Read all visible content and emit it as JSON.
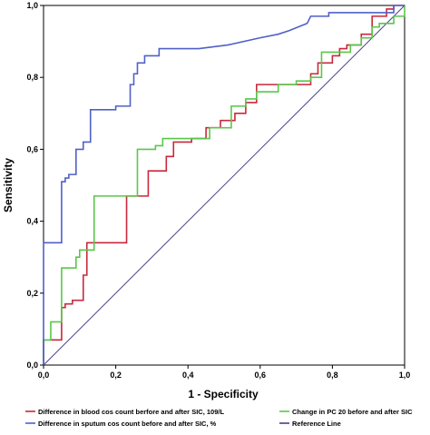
{
  "chart_data": {
    "type": "line",
    "title": "",
    "xlabel": "1 - Specificity",
    "ylabel": "Sensitivity",
    "xlim": [
      0,
      1
    ],
    "ylim": [
      0,
      1
    ],
    "x_ticks": [
      "0,0",
      "0,2",
      "0,4",
      "0,6",
      "0,8",
      "1,0"
    ],
    "y_ticks": [
      "0,0",
      "0,2",
      "0,4",
      "0,6",
      "0,8",
      "1,0"
    ],
    "tick_values": [
      0,
      0.2,
      0.4,
      0.6,
      0.8,
      1.0
    ],
    "grid": false,
    "legend_position": "bottom",
    "series": [
      {
        "name": "Difference in blood cos count berfore and after SIC, 109/L",
        "color": "#c8283c",
        "points": [
          [
            0,
            0
          ],
          [
            0,
            0.07
          ],
          [
            0.05,
            0.07
          ],
          [
            0.05,
            0.16
          ],
          [
            0.06,
            0.16
          ],
          [
            0.06,
            0.17
          ],
          [
            0.08,
            0.17
          ],
          [
            0.08,
            0.18
          ],
          [
            0.11,
            0.18
          ],
          [
            0.11,
            0.25
          ],
          [
            0.12,
            0.25
          ],
          [
            0.12,
            0.34
          ],
          [
            0.23,
            0.34
          ],
          [
            0.23,
            0.47
          ],
          [
            0.29,
            0.47
          ],
          [
            0.29,
            0.54
          ],
          [
            0.34,
            0.54
          ],
          [
            0.34,
            0.58
          ],
          [
            0.36,
            0.58
          ],
          [
            0.36,
            0.62
          ],
          [
            0.41,
            0.62
          ],
          [
            0.41,
            0.63
          ],
          [
            0.45,
            0.63
          ],
          [
            0.45,
            0.66
          ],
          [
            0.49,
            0.66
          ],
          [
            0.49,
            0.68
          ],
          [
            0.53,
            0.68
          ],
          [
            0.53,
            0.7
          ],
          [
            0.56,
            0.7
          ],
          [
            0.56,
            0.73
          ],
          [
            0.59,
            0.73
          ],
          [
            0.59,
            0.78
          ],
          [
            0.74,
            0.78
          ],
          [
            0.74,
            0.81
          ],
          [
            0.76,
            0.81
          ],
          [
            0.76,
            0.84
          ],
          [
            0.8,
            0.84
          ],
          [
            0.8,
            0.86
          ],
          [
            0.82,
            0.86
          ],
          [
            0.82,
            0.88
          ],
          [
            0.84,
            0.88
          ],
          [
            0.84,
            0.89
          ],
          [
            0.88,
            0.89
          ],
          [
            0.88,
            0.92
          ],
          [
            0.91,
            0.92
          ],
          [
            0.91,
            0.97
          ],
          [
            0.95,
            0.97
          ],
          [
            0.95,
            0.99
          ],
          [
            0.97,
            0.99
          ],
          [
            0.97,
            1.0
          ],
          [
            1.0,
            1.0
          ]
        ]
      },
      {
        "name": "Change in PC 20 before and after SIC",
        "color": "#58c848",
        "points": [
          [
            0,
            0
          ],
          [
            0,
            0.07
          ],
          [
            0.02,
            0.07
          ],
          [
            0.02,
            0.12
          ],
          [
            0.05,
            0.12
          ],
          [
            0.05,
            0.27
          ],
          [
            0.09,
            0.27
          ],
          [
            0.09,
            0.3
          ],
          [
            0.1,
            0.3
          ],
          [
            0.1,
            0.32
          ],
          [
            0.14,
            0.32
          ],
          [
            0.14,
            0.47
          ],
          [
            0.26,
            0.47
          ],
          [
            0.26,
            0.6
          ],
          [
            0.31,
            0.6
          ],
          [
            0.31,
            0.61
          ],
          [
            0.33,
            0.61
          ],
          [
            0.33,
            0.63
          ],
          [
            0.46,
            0.63
          ],
          [
            0.46,
            0.66
          ],
          [
            0.52,
            0.66
          ],
          [
            0.52,
            0.72
          ],
          [
            0.56,
            0.72
          ],
          [
            0.56,
            0.74
          ],
          [
            0.59,
            0.74
          ],
          [
            0.59,
            0.76
          ],
          [
            0.65,
            0.76
          ],
          [
            0.65,
            0.78
          ],
          [
            0.7,
            0.78
          ],
          [
            0.7,
            0.79
          ],
          [
            0.74,
            0.79
          ],
          [
            0.74,
            0.8
          ],
          [
            0.77,
            0.8
          ],
          [
            0.77,
            0.87
          ],
          [
            0.85,
            0.87
          ],
          [
            0.85,
            0.89
          ],
          [
            0.88,
            0.89
          ],
          [
            0.88,
            0.91
          ],
          [
            0.91,
            0.91
          ],
          [
            0.91,
            0.94
          ],
          [
            0.93,
            0.94
          ],
          [
            0.93,
            0.95
          ],
          [
            0.97,
            0.95
          ],
          [
            0.97,
            0.97
          ],
          [
            1.0,
            0.97
          ],
          [
            1.0,
            1.0
          ]
        ]
      },
      {
        "name": "Difference in sputum cos count before and after SIC, %",
        "color": "#5060c8",
        "points": [
          [
            0,
            0
          ],
          [
            0,
            0.34
          ],
          [
            0.05,
            0.34
          ],
          [
            0.05,
            0.51
          ],
          [
            0.06,
            0.51
          ],
          [
            0.06,
            0.52
          ],
          [
            0.07,
            0.52
          ],
          [
            0.07,
            0.53
          ],
          [
            0.09,
            0.53
          ],
          [
            0.09,
            0.6
          ],
          [
            0.11,
            0.6
          ],
          [
            0.11,
            0.62
          ],
          [
            0.13,
            0.62
          ],
          [
            0.13,
            0.71
          ],
          [
            0.2,
            0.71
          ],
          [
            0.2,
            0.72
          ],
          [
            0.24,
            0.72
          ],
          [
            0.24,
            0.78
          ],
          [
            0.25,
            0.78
          ],
          [
            0.25,
            0.81
          ],
          [
            0.26,
            0.81
          ],
          [
            0.26,
            0.84
          ],
          [
            0.28,
            0.84
          ],
          [
            0.28,
            0.86
          ],
          [
            0.32,
            0.86
          ],
          [
            0.32,
            0.88
          ],
          [
            0.43,
            0.88
          ],
          [
            0.51,
            0.89
          ],
          [
            0.6,
            0.91
          ],
          [
            0.65,
            0.92
          ],
          [
            0.68,
            0.93
          ],
          [
            0.73,
            0.95
          ],
          [
            0.74,
            0.97
          ],
          [
            0.79,
            0.97
          ],
          [
            0.79,
            0.98
          ],
          [
            0.97,
            0.98
          ],
          [
            0.97,
            1.0
          ],
          [
            1.0,
            1.0
          ]
        ]
      },
      {
        "name": "Reference Line",
        "color": "#4a3f8c",
        "points": [
          [
            0,
            0
          ],
          [
            1,
            1
          ]
        ]
      }
    ]
  }
}
